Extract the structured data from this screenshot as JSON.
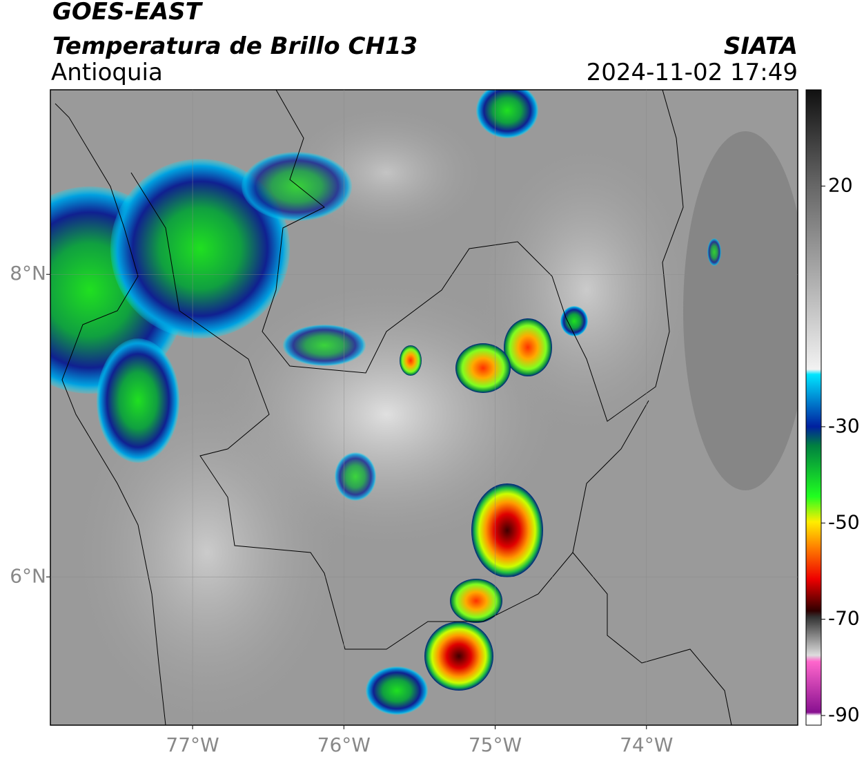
{
  "header": {
    "title": "GOES-EAST",
    "subtitle": "Temperatura de Brillo CH13",
    "region": "Antioquia",
    "source": "SIATA",
    "datetime": "2024-11-02 17:49"
  },
  "chart_data": {
    "type": "map",
    "xlim": [
      -77.94,
      -73.0
    ],
    "ylim": [
      5.02,
      9.22
    ],
    "xticks": [
      {
        "value": -77,
        "label": "77°W"
      },
      {
        "value": -76,
        "label": "76°W"
      },
      {
        "value": -75,
        "label": "75°W"
      },
      {
        "value": -74,
        "label": "74°W"
      }
    ],
    "yticks": [
      {
        "value": 6,
        "label": "6°N"
      },
      {
        "value": 8,
        "label": "8°N"
      }
    ],
    "grid": true,
    "colorbar": {
      "clim": [
        -92,
        40
      ],
      "ticks": [
        -90,
        -70,
        -50,
        -30,
        20
      ]
    }
  }
}
